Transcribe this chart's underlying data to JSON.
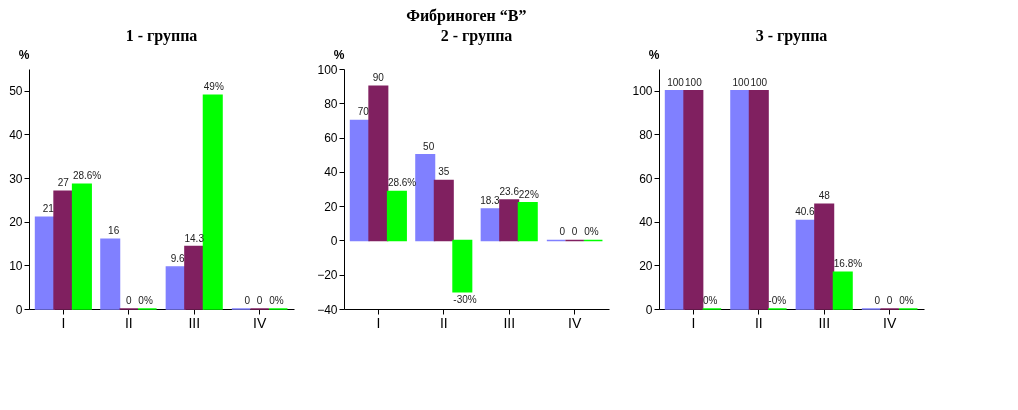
{
  "chart_data": [
    {
      "type": "bar",
      "title": "1 - группа",
      "ylabel": "%",
      "annotations": [
        "Фибриноген “B”"
      ],
      "categories": [
        "I",
        "II",
        "III",
        "IV"
      ],
      "ylim": [
        0,
        55
      ],
      "yticks": [
        0,
        10,
        20,
        30,
        40,
        50
      ],
      "grid": false,
      "legend": false,
      "series": [
        {
          "color": "#8080ff",
          "values": [
            21,
            16,
            9.6,
            0
          ],
          "value_labels": [
            "21",
            "16",
            "9.6",
            "0"
          ]
        },
        {
          "color": "#802060",
          "values": [
            27,
            0,
            14.3,
            0
          ],
          "value_labels": [
            "27",
            "0",
            "14.3",
            "0"
          ]
        },
        {
          "color": "#00ff00",
          "values": [
            28.6,
            0,
            49,
            0
          ],
          "value_labels": [
            "28.6%",
            "0%",
            "49%",
            "0%"
          ]
        }
      ]
    },
    {
      "type": "bar",
      "title": "2 - группа",
      "ylabel": "%",
      "categories": [
        "I",
        "II",
        "III",
        "IV"
      ],
      "ylim": [
        -40,
        100
      ],
      "yticks": [
        -40,
        -20,
        0,
        20,
        40,
        60,
        80,
        100
      ],
      "grid": false,
      "legend": false,
      "series": [
        {
          "color": "#8080ff",
          "values": [
            70,
            50,
            18.3,
            0
          ],
          "value_labels": [
            "70",
            "50",
            "18.3",
            "0"
          ]
        },
        {
          "color": "#802060",
          "values": [
            90,
            35,
            23.6,
            0
          ],
          "value_labels": [
            "90",
            "35",
            "23.6",
            "0"
          ]
        },
        {
          "color": "#00ff00",
          "values": [
            28.6,
            -30,
            22,
            0
          ],
          "value_labels": [
            "28.6%",
            "-30%",
            "22%",
            "0%"
          ]
        }
      ]
    },
    {
      "type": "bar",
      "title": "3 - группа",
      "ylabel": "%",
      "categories": [
        "I",
        "II",
        "III",
        "IV"
      ],
      "ylim": [
        0,
        110
      ],
      "yticks": [
        0,
        20,
        40,
        60,
        80,
        100
      ],
      "grid": false,
      "legend": false,
      "series": [
        {
          "color": "#8080ff",
          "values": [
            100,
            100,
            40.6,
            0
          ],
          "value_labels": [
            "100",
            "100",
            "40.6",
            "0"
          ]
        },
        {
          "color": "#802060",
          "values": [
            100,
            100,
            48,
            0
          ],
          "value_labels": [
            "100",
            "100",
            "48",
            "0"
          ]
        },
        {
          "color": "#00ff00",
          "values": [
            0,
            0,
            16.8,
            0
          ],
          "value_labels": [
            "0%",
            "-0%",
            "16.8%",
            "0%"
          ]
        }
      ]
    }
  ]
}
